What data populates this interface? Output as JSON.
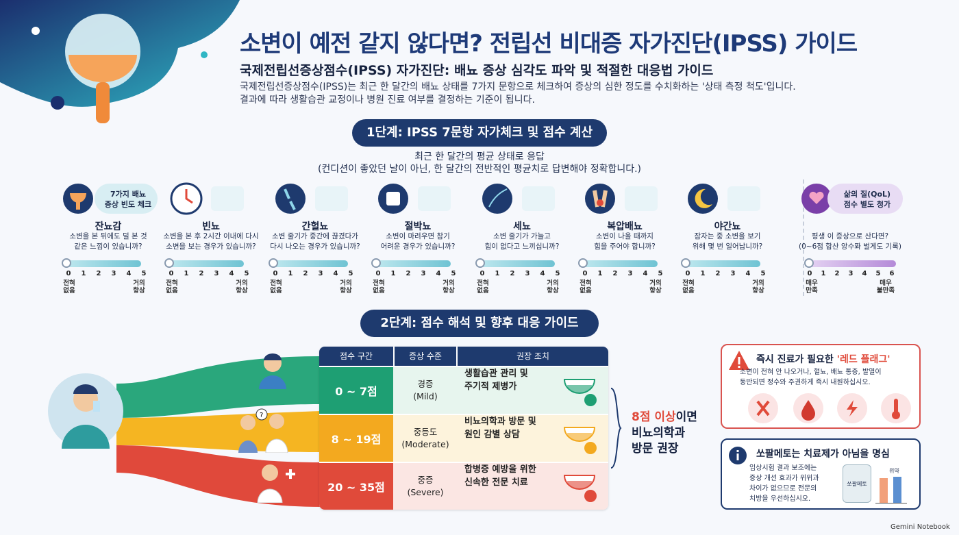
{
  "header": {
    "title": "소변이 예전 같지 않다면? 전립선 비대증 자가진단(IPSS) 가이드",
    "subtitle": "국제전립선증상점수(IPSS) 자가진단: 배뇨 증상 심각도 파악 및 적절한 대응법 가이드",
    "intro_1": "국제전립선증상점수(IPSS)는 최근 한 달간의 배뇨 상태를 7가지 문항으로 체크하여 증상의 심한 정도를 수치화하는 '상태 측정 척도'입니다.",
    "intro_2": "결과에 따라 생활습관 교정이나 병원 진료 여부를 결정하는 기준이 됩니다."
  },
  "step1": {
    "label": "1단계: IPSS 7문항 자가체크 및 점수 계산",
    "note_1": "최근 한 달간의 평균 상태로 응답",
    "note_2": "(컨디션이 좋았던 날이 아닌, 한 달간의 전반적인 평균치로 답변해야 정확합니다.)",
    "group_label_1": "7가지 배뇨",
    "group_label_2": "증상 빈도 체크",
    "items": [
      {
        "name": "잔뇨감",
        "desc_1": "소변을 본 뒤에도 덜 본 것",
        "desc_2": "같은 느낌이 있습니까?",
        "lo_1": "전혀",
        "lo_2": "없음",
        "hi_1": "거의",
        "hi_2": "항상",
        "icon": "bladder-icon"
      },
      {
        "name": "빈뇨",
        "desc_1": "소변을 본 후 2시간 이내에 다시",
        "desc_2": "소변을 보는 경우가 있습니까?",
        "lo_1": "전혀",
        "lo_2": "없음",
        "hi_1": "거의",
        "hi_2": "항상",
        "icon": "clock-icon"
      },
      {
        "name": "간헐뇨",
        "desc_1": "소변 줄기가 중간에 끊겼다가",
        "desc_2": "다시 나오는 경우가 있습니까?",
        "lo_1": "전혀",
        "lo_2": "없음",
        "hi_1": "거의",
        "hi_2": "항상",
        "icon": "interrupted-stream-icon"
      },
      {
        "name": "절박뇨",
        "desc_1": "소변이 마려우면 참기",
        "desc_2": "어려운 경우가 있습니까?",
        "lo_1": "전혀",
        "lo_2": "없음",
        "hi_1": "거의",
        "hi_2": "항상",
        "icon": "urgency-run-icon"
      },
      {
        "name": "세뇨",
        "desc_1": "소변 줄기가 가늘고",
        "desc_2": "힘이 없다고 느끼십니까?",
        "lo_1": "전혀",
        "lo_2": "없음",
        "hi_1": "거의",
        "hi_2": "항상",
        "icon": "weak-stream-icon"
      },
      {
        "name": "복압배뇨",
        "desc_1": "소변이 나올 때까지",
        "desc_2": "힘을 주어야 합니까?",
        "lo_1": "전혀",
        "lo_2": "없음",
        "hi_1": "거의",
        "hi_2": "항상",
        "icon": "straining-icon"
      },
      {
        "name": "야간뇨",
        "desc_1": "잠자는 중 소변을 보기",
        "desc_2": "위해 몇 번 일어납니까?",
        "lo_1": "전혀",
        "lo_2": "없음",
        "hi_1": "거의",
        "hi_2": "항상",
        "icon": "moon-bed-icon"
      }
    ],
    "scale_numbers": [
      "0",
      "1",
      "2",
      "3",
      "4",
      "5"
    ],
    "qol": {
      "label_1": "삶의 질(QoL)",
      "label_2": "점수 별도 청가",
      "desc_1": "평생 이 증상으로 산다면?",
      "desc_2": "(0~6점 합산 앙수퐈 벌게도 기록)",
      "numbers": [
        "0",
        "1",
        "2",
        "3",
        "4",
        "5",
        "6"
      ],
      "lo_1": "매우",
      "lo_2": "만족",
      "hi_1": "매우",
      "hi_2": "불만족",
      "icon": "heart-hand-icon"
    }
  },
  "step2": {
    "label": "2단계: 점수 해석 및 향후 대응 가이드",
    "headers": [
      "점수 구간",
      "증상 수준",
      "권장 조치"
    ],
    "rows": [
      {
        "score": "0 ~ 7점",
        "level_1": "경증",
        "level_2": "(Mild)",
        "action_1": "생활습관 관리 및",
        "action_2": "주기적 제병가",
        "color": "#1e9f73",
        "bg": "#e7f5ee"
      },
      {
        "score": "8 ~ 19점",
        "level_1": "중등도",
        "level_2": "(Moderate)",
        "action_1": "비뇨의학과 방문 및",
        "action_2": "원인 감별 상담",
        "color": "#f3a91f",
        "bg": "#fdf3dc"
      },
      {
        "score": "20 ~ 35점",
        "level_1": "중증",
        "level_2": "(Severe)",
        "action_1": "합병증 예방을 위한",
        "action_2": "신속한 전문 치료",
        "color": "#e04a3a",
        "bg": "#fbe6e3"
      }
    ],
    "callout_1": "8점 이상",
    "callout_1b": "이면",
    "callout_2": "비뇨의학과",
    "callout_3": "방문 권장"
  },
  "red_flag": {
    "title": "즉시 진료가 필요한 ",
    "title_accent": "'레드 플래그'",
    "text_1": "소변이 전혀 안 나오거나, 혈뇨, 배뇨 통증, 발열이",
    "text_2": "동반되면 정수와 주권하게 즉시 내원하십시오.",
    "icons": [
      "urine-retention-icon",
      "blood-drop-icon",
      "pain-bolt-icon",
      "thermometer-icon"
    ]
  },
  "saw_palmetto": {
    "title": "쏘팔메토는 치료제가 아님을 명심",
    "text_1": "임상시험 결과 보조에는",
    "text_2": "증상 개선 효과가 위위과",
    "text_3": "차이가 없으므로 전문의",
    "text_4": "치방을 우선하십시오.",
    "bottle_label": "쏘팔메토",
    "chart_label": "위약"
  },
  "footer": "Gemini Notebook",
  "colors": {
    "navy": "#1e3a6e",
    "green": "#1e9f73",
    "yellow": "#f3a91f",
    "red": "#e04a3a"
  }
}
